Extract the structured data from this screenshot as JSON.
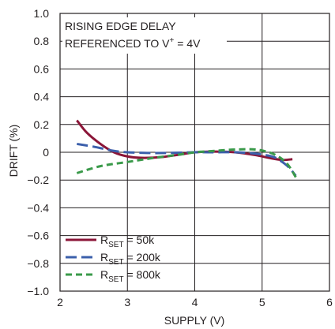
{
  "chart_data": {
    "type": "line",
    "annotation": {
      "line1": "RISING EDGE DELAY",
      "line2_pre": "REFERENCED TO V",
      "line2_sup": "+",
      "line2_post": " = 4V"
    },
    "xlabel": "SUPPLY (V)",
    "ylabel": "DRIFT (%)",
    "xlim": [
      2,
      6
    ],
    "ylim": [
      -1.0,
      1.0
    ],
    "xticks": [
      2,
      3,
      4,
      5,
      6
    ],
    "xtick_labels": [
      "2",
      "3",
      "4",
      "5",
      "6"
    ],
    "yticks": [
      1.0,
      0.8,
      0.6,
      0.4,
      0.2,
      0,
      -0.2,
      -0.4,
      -0.6,
      -0.8,
      -1.0
    ],
    "ytick_labels": [
      "1.0",
      "0.8",
      "0.6",
      "0.4",
      "0.2",
      "0",
      "−0.2",
      "−0.4",
      "−0.6",
      "−0.8",
      "−1.0"
    ],
    "grid": true,
    "legend_position": "bottom-left",
    "series": [
      {
        "name": "R_SET = 50k",
        "label_main": "R",
        "label_sub": "SET",
        "label_rest": " = 50k",
        "color": "#8b1538",
        "dash": "solid",
        "x": [
          2.25,
          2.4,
          2.6,
          2.8,
          3.0,
          3.2,
          3.5,
          3.8,
          4.0,
          4.3,
          4.6,
          4.9,
          5.1,
          5.3,
          5.45
        ],
        "y": [
          0.23,
          0.14,
          0.06,
          0.0,
          -0.03,
          -0.04,
          -0.035,
          -0.015,
          0.0,
          0.005,
          0.0,
          -0.02,
          -0.04,
          -0.055,
          -0.05
        ]
      },
      {
        "name": "R_SET = 200k",
        "label_main": "R",
        "label_sub": "SET",
        "label_rest": " = 200k",
        "color": "#3b5fab",
        "dash": "long",
        "x": [
          2.25,
          2.5,
          2.8,
          3.0,
          3.3,
          3.6,
          4.0,
          4.3,
          4.6,
          4.9,
          5.1,
          5.2,
          5.3,
          5.4,
          5.5
        ],
        "y": [
          0.06,
          0.04,
          0.01,
          0.0,
          -0.005,
          -0.005,
          0.0,
          0.0,
          0.0,
          -0.01,
          -0.025,
          -0.04,
          -0.07,
          -0.11,
          -0.17
        ]
      },
      {
        "name": "R_SET = 800k",
        "label_main": "R",
        "label_sub": "SET",
        "label_rest": " = 800k",
        "color": "#3a9a4a",
        "dash": "short",
        "x": [
          2.25,
          2.6,
          3.0,
          3.4,
          3.8,
          4.0,
          4.3,
          4.6,
          4.9,
          5.1,
          5.2,
          5.3,
          5.4,
          5.5
        ],
        "y": [
          -0.15,
          -0.1,
          -0.07,
          -0.04,
          -0.015,
          0.0,
          0.01,
          0.02,
          0.02,
          0.0,
          -0.02,
          -0.05,
          -0.1,
          -0.18
        ]
      }
    ]
  }
}
